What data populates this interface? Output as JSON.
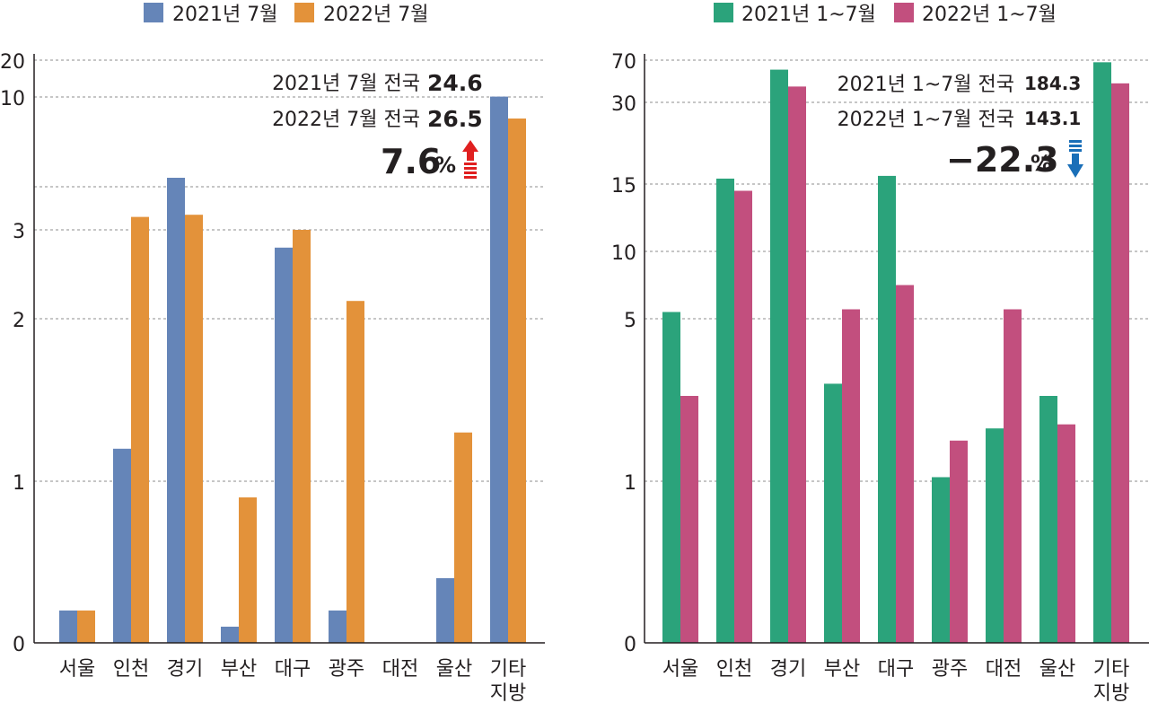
{
  "chart_data": [
    {
      "type": "bar",
      "categories": [
        [
          "서울"
        ],
        [
          "인천"
        ],
        [
          "경기"
        ],
        [
          "부산"
        ],
        [
          "대구"
        ],
        [
          "광주"
        ],
        [
          "대전"
        ],
        [
          "울산"
        ],
        [
          "기타",
          "지방"
        ]
      ],
      "series": [
        {
          "name": "2021년 7월",
          "color": "#6585b8",
          "values": [
            0.2,
            1.2,
            5.5,
            0.1,
            2.8,
            0.2,
            0,
            0.4,
            10.1
          ]
        },
        {
          "name": "2022년 7월",
          "color": "#e3923a",
          "values": [
            0.2,
            3.6,
            3.7,
            0.9,
            3.0,
            2.2,
            0,
            1.3,
            8.8
          ]
        }
      ],
      "series_fixed": true,
      "y_ticks": [
        "0",
        "1",
        "2",
        "3",
        "10",
        "20"
      ],
      "ylim": [
        0,
        20
      ],
      "annotation": {
        "line1_label": "2021년 7월 전국",
        "line1_value": "24.6",
        "line2_label": "2022년 7월 전국",
        "line2_value": "26.5",
        "change": "7.6",
        "unit": "%",
        "direction": "up",
        "arrow_color": "#e02020"
      }
    },
    {
      "type": "bar",
      "categories": [
        [
          "서울"
        ],
        [
          "인천"
        ],
        [
          "경기"
        ],
        [
          "부산"
        ],
        [
          "대구"
        ],
        [
          "광주"
        ],
        [
          "대전"
        ],
        [
          "울산"
        ],
        [
          "기타",
          "지방"
        ]
      ],
      "series": [
        {
          "name": "2021년 1~7월",
          "color": "#2ba37b",
          "values": [
            5.5,
            16,
            61,
            3.4,
            16.5,
            1.1,
            2.3,
            3.1,
            68
          ]
        },
        {
          "name": "2022년 1~7월",
          "color": "#c24f7e",
          "values": [
            3.1,
            14.5,
            45,
            5.7,
            7.5,
            2.0,
            5.7,
            2.4,
            48
          ]
        }
      ],
      "y_ticks": [
        "0",
        "1",
        "5",
        "10",
        "15",
        "30",
        "70"
      ],
      "ylim": [
        0,
        70
      ],
      "annotation": {
        "line1_label": "2021년 1~7월 전국",
        "line1_value": "184.3",
        "line2_label": "2022년 1~7월 전국",
        "line2_value": "143.1",
        "change": "−22.3",
        "unit": "%",
        "direction": "down",
        "arrow_color": "#1a6fb8"
      }
    }
  ]
}
